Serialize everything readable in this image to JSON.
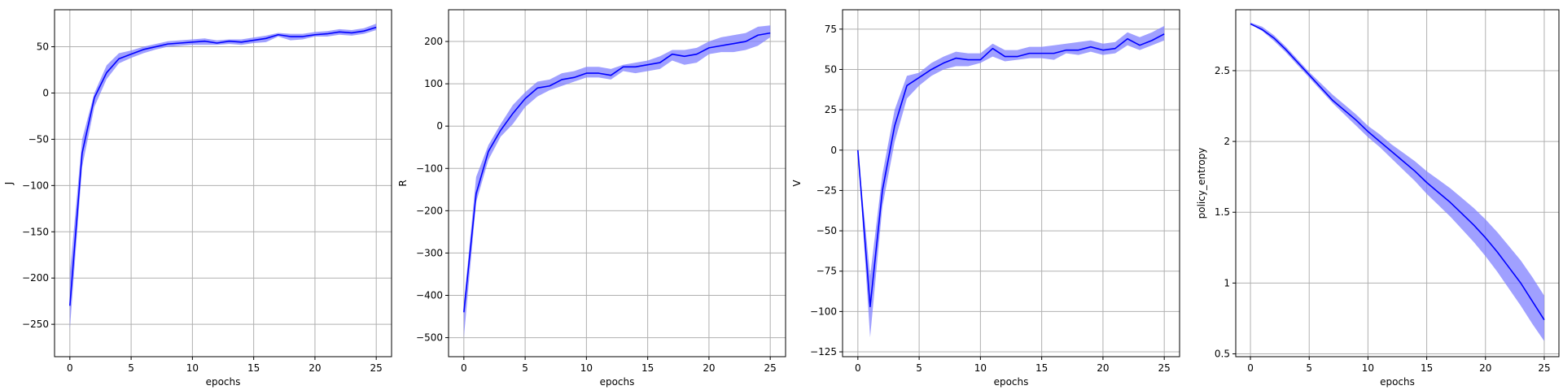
{
  "chart_data": [
    {
      "type": "line",
      "xlabel": "epochs",
      "ylabel": "J",
      "xlim": [
        -1.25,
        26.25
      ],
      "ylim": [
        -285,
        90
      ],
      "xticks": [
        0,
        5,
        10,
        15,
        20,
        25
      ],
      "yticks": [
        -250,
        -200,
        -150,
        -100,
        -50,
        0,
        50
      ],
      "grid": true,
      "line_color": "#0000ff",
      "band_color": "#8080ff",
      "x": [
        0,
        1,
        2,
        3,
        4,
        5,
        6,
        7,
        8,
        9,
        10,
        11,
        12,
        13,
        14,
        15,
        16,
        17,
        18,
        19,
        20,
        21,
        22,
        23,
        24,
        25
      ],
      "y": [
        -230,
        -65,
        -5,
        22,
        37,
        42,
        47,
        50,
        53,
        54,
        55,
        56,
        54,
        56,
        55,
        57,
        59,
        63,
        61,
        61,
        63,
        64,
        66,
        65,
        67,
        71
      ],
      "lower": [
        -255,
        -80,
        -15,
        15,
        32,
        38,
        43,
        47,
        50,
        51,
        52,
        52,
        52,
        53,
        52,
        54,
        55,
        61,
        57,
        58,
        61,
        61,
        63,
        62,
        64,
        68
      ],
      "upper": [
        -195,
        -50,
        0,
        30,
        43,
        46,
        50,
        53,
        56,
        57,
        58,
        59,
        57,
        58,
        58,
        60,
        62,
        65,
        64,
        64,
        66,
        67,
        69,
        68,
        70,
        75
      ]
    },
    {
      "type": "line",
      "xlabel": "epochs",
      "ylabel": "R",
      "xlim": [
        -1.25,
        26.25
      ],
      "ylim": [
        -545,
        275
      ],
      "xticks": [
        0,
        5,
        10,
        15,
        20,
        25
      ],
      "yticks": [
        -500,
        -400,
        -300,
        -200,
        -100,
        0,
        100,
        200
      ],
      "grid": true,
      "line_color": "#0000ff",
      "band_color": "#8080ff",
      "x": [
        0,
        1,
        2,
        3,
        4,
        5,
        6,
        7,
        8,
        9,
        10,
        11,
        12,
        13,
        14,
        15,
        16,
        17,
        18,
        19,
        20,
        21,
        22,
        23,
        24,
        25
      ],
      "y": [
        -440,
        -160,
        -60,
        -10,
        30,
        65,
        90,
        95,
        110,
        115,
        125,
        125,
        120,
        140,
        140,
        145,
        150,
        170,
        165,
        170,
        185,
        190,
        195,
        200,
        215,
        220
      ],
      "lower": [
        -500,
        -180,
        -80,
        -25,
        5,
        45,
        70,
        85,
        95,
        105,
        115,
        115,
        110,
        130,
        125,
        130,
        135,
        155,
        145,
        150,
        170,
        175,
        175,
        180,
        190,
        210
      ],
      "upper": [
        -420,
        -120,
        -45,
        5,
        50,
        80,
        105,
        110,
        125,
        130,
        140,
        140,
        135,
        145,
        150,
        155,
        165,
        180,
        180,
        185,
        200,
        210,
        215,
        220,
        235,
        238
      ]
    },
    {
      "type": "line",
      "xlabel": "epochs",
      "ylabel": "V",
      "xlim": [
        -1.25,
        26.25
      ],
      "ylim": [
        -128,
        87
      ],
      "xticks": [
        0,
        5,
        10,
        15,
        20,
        25
      ],
      "yticks": [
        -125,
        -100,
        -75,
        -50,
        -25,
        0,
        25,
        50,
        75
      ],
      "grid": true,
      "line_color": "#0000ff",
      "band_color": "#8080ff",
      "x": [
        0,
        1,
        2,
        3,
        4,
        5,
        6,
        7,
        8,
        9,
        10,
        11,
        12,
        13,
        14,
        15,
        16,
        17,
        18,
        19,
        20,
        21,
        22,
        23,
        24,
        25
      ],
      "y": [
        0,
        -97,
        -25,
        15,
        40,
        45,
        50,
        54,
        57,
        56,
        56,
        63,
        58,
        58,
        60,
        60,
        60,
        62,
        62,
        64,
        62,
        63,
        69,
        65,
        68,
        72
      ],
      "lower": [
        0,
        -116,
        -35,
        5,
        32,
        40,
        46,
        50,
        52,
        52,
        54,
        58,
        55,
        56,
        57,
        57,
        56,
        60,
        59,
        61,
        59,
        60,
        65,
        62,
        65,
        68
      ],
      "upper": [
        0,
        -78,
        -15,
        25,
        46,
        48,
        54,
        58,
        61,
        60,
        60,
        66,
        62,
        62,
        64,
        64,
        65,
        66,
        67,
        68,
        66,
        67,
        73,
        70,
        73,
        77
      ]
    },
    {
      "type": "line",
      "xlabel": "epochs",
      "ylabel": "policy_entropy",
      "xlim": [
        -1.25,
        26.25
      ],
      "ylim": [
        0.48,
        2.93
      ],
      "xticks": [
        0,
        5,
        10,
        15,
        20,
        25
      ],
      "yticks": [
        0.5,
        1.0,
        1.5,
        2.0,
        2.5
      ],
      "grid": true,
      "line_color": "#0000ff",
      "band_color": "#8080ff",
      "x": [
        0,
        1,
        2,
        3,
        4,
        5,
        6,
        7,
        8,
        9,
        10,
        11,
        12,
        13,
        14,
        15,
        16,
        17,
        18,
        19,
        20,
        21,
        22,
        23,
        24,
        25
      ],
      "y": [
        2.83,
        2.79,
        2.73,
        2.65,
        2.56,
        2.47,
        2.38,
        2.29,
        2.22,
        2.15,
        2.07,
        2.0,
        1.93,
        1.86,
        1.79,
        1.71,
        1.64,
        1.57,
        1.49,
        1.41,
        1.32,
        1.22,
        1.11,
        1.0,
        0.87,
        0.74
      ],
      "lower": [
        2.83,
        2.78,
        2.71,
        2.63,
        2.54,
        2.45,
        2.36,
        2.27,
        2.19,
        2.11,
        2.03,
        1.96,
        1.88,
        1.8,
        1.72,
        1.63,
        1.55,
        1.47,
        1.38,
        1.29,
        1.19,
        1.08,
        0.96,
        0.84,
        0.71,
        0.59
      ],
      "upper": [
        2.84,
        2.81,
        2.75,
        2.67,
        2.58,
        2.49,
        2.41,
        2.33,
        2.26,
        2.19,
        2.11,
        2.05,
        1.98,
        1.92,
        1.86,
        1.79,
        1.73,
        1.67,
        1.6,
        1.53,
        1.45,
        1.36,
        1.26,
        1.16,
        1.04,
        0.91
      ]
    }
  ]
}
